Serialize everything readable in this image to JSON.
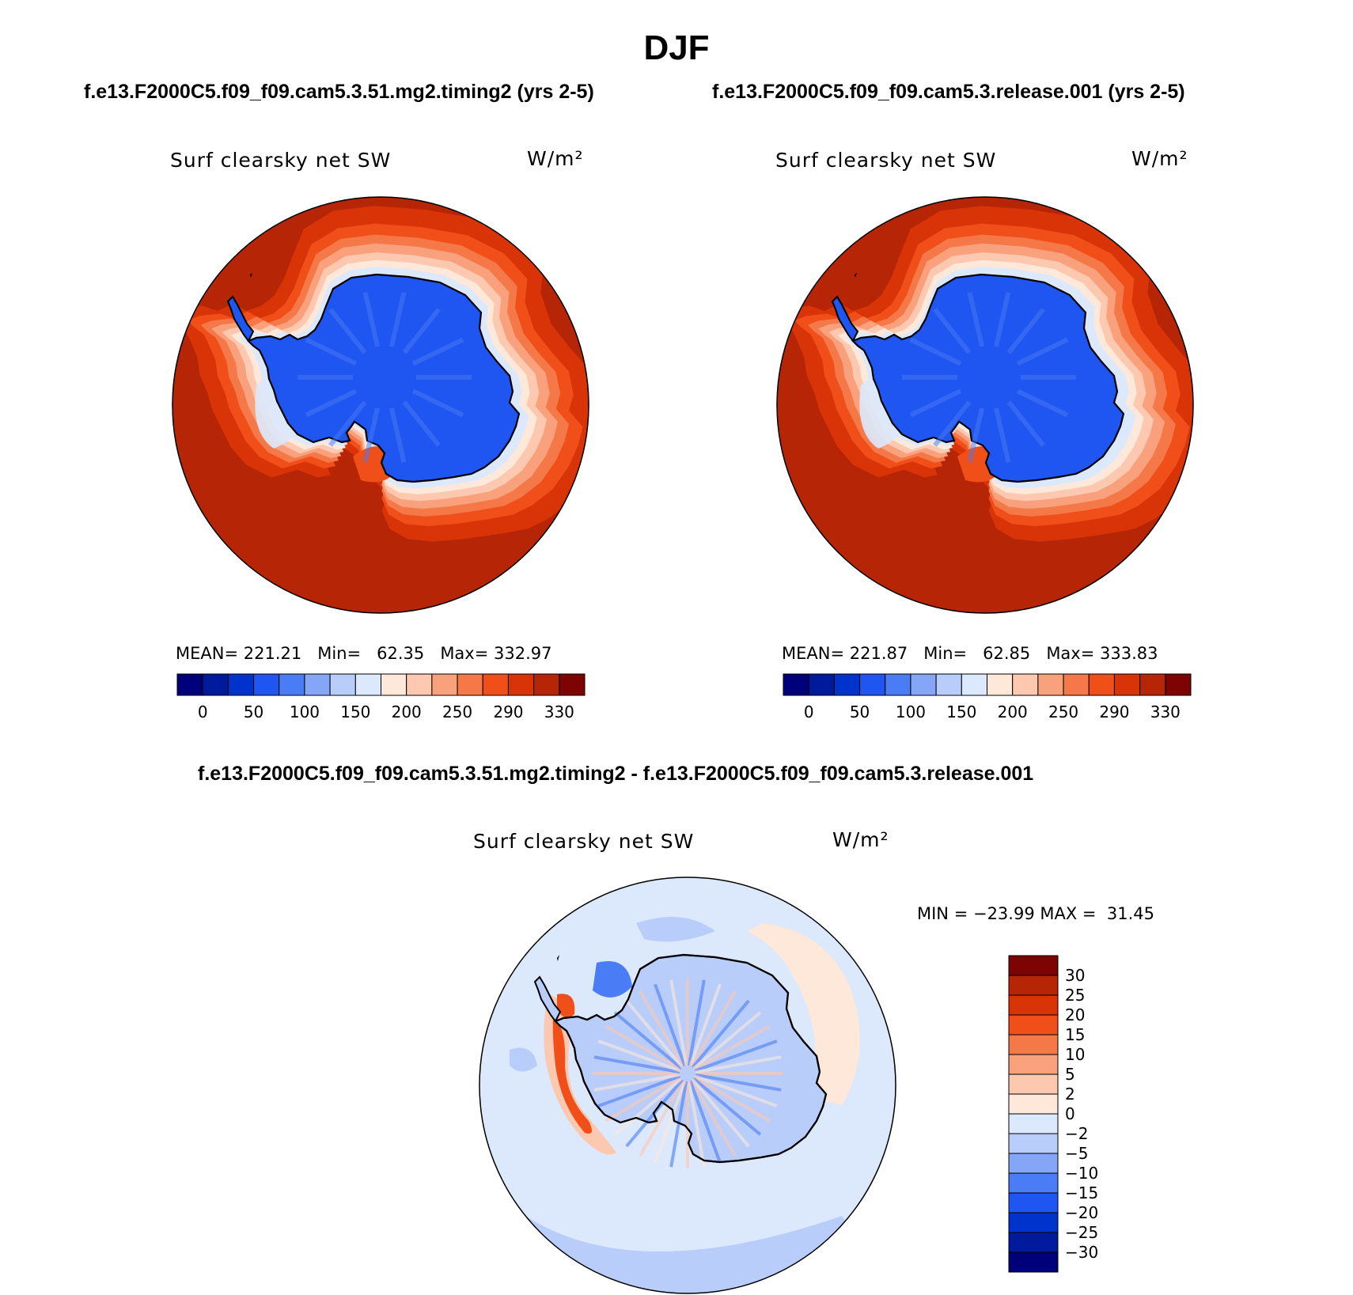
{
  "season": "DJF",
  "panels": [
    {
      "case_title": "f.e13.F2000C5.f09_f09.cam5.3.51.mg2.timing2 (yrs 2-5)",
      "variable": "Surf clearsky net SW",
      "units": "W/m²",
      "stats": {
        "mean_label": "MEAN=",
        "mean": "221.21",
        "min_label": "Min=",
        "min": "62.35",
        "max_label": "Max=",
        "max": "332.97"
      }
    },
    {
      "case_title": "f.e13.F2000C5.f09_f09.cam5.3.release.001 (yrs 2-5)",
      "variable": "Surf clearsky net SW",
      "units": "W/m²",
      "stats": {
        "mean_label": "MEAN=",
        "mean": "221.87",
        "min_label": "Min=",
        "min": "62.85",
        "max_label": "Max=",
        "max": "333.83"
      }
    }
  ],
  "abs_colorbar": {
    "colors": [
      "#00007a",
      "#001a9c",
      "#0033cc",
      "#1f55f0",
      "#4a7cf5",
      "#85a6f7",
      "#b9cdfa",
      "#dce8fb",
      "#fde8da",
      "#fcc9b0",
      "#f9a07c",
      "#f57848",
      "#f04f1a",
      "#d93308",
      "#b52506",
      "#7e0404"
    ],
    "labels": [
      "0",
      "50",
      "100",
      "150",
      "200",
      "250",
      "290",
      "330"
    ]
  },
  "diff_panel": {
    "case_title": "f.e13.F2000C5.f09_f09.cam5.3.51.mg2.timing2 - f.e13.F2000C5.f09_f09.cam5.3.release.001",
    "variable": "Surf clearsky net SW",
    "units": "W/m²",
    "minmax": "MIN = −23.99 MAX =  31.45",
    "colorbar": {
      "colors": [
        "#7e0404",
        "#b52506",
        "#d93308",
        "#f04f1a",
        "#f57848",
        "#f9a07c",
        "#fcc9b0",
        "#fde8da",
        "#dce8fb",
        "#b9cdfa",
        "#85a6f7",
        "#4a7cf5",
        "#1f55f0",
        "#0033cc",
        "#001a9c",
        "#00007a"
      ],
      "labels": [
        "30",
        "25",
        "20",
        "15",
        "10",
        "5",
        "2",
        "0",
        "−2",
        "−5",
        "−10",
        "−15",
        "−20",
        "−25",
        "−30"
      ]
    }
  },
  "fill_colors": {
    "ocean_dark": "#b52506",
    "ocean_mid": "#d93308",
    "ocean_edge": "#7e0404",
    "ice_ring1": "#f04f1a",
    "ice_ring2": "#f57848",
    "ice_ring3": "#f9a07c",
    "ice_ring4": "#fcc9b0",
    "ice_ring5": "#fde8da",
    "ice_ring6": "#dce8fb",
    "land": "#1f55f0",
    "land_streak": "#4a7cf5",
    "diff_bg": "#dce8fb",
    "diff_light": "#b9cdfa",
    "diff_blue": "#4a7cf5",
    "diff_red": "#f04f1a",
    "diff_pink": "#fcc9b0",
    "diff_cream": "#fde8da"
  }
}
